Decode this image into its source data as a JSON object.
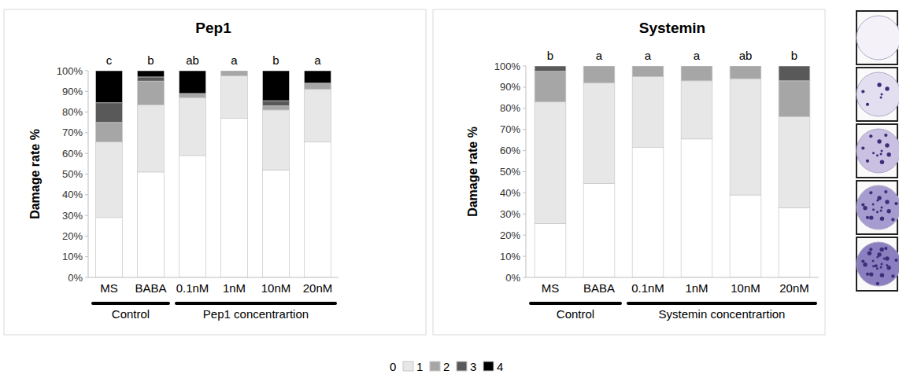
{
  "chart_data": [
    {
      "type": "bar",
      "stacked": true,
      "title": "Pep1",
      "y_label": "Damage rate %",
      "categories": [
        "MS",
        "BABA",
        "0.1nM",
        "1nM",
        "10nM",
        "20nM"
      ],
      "annotations": [
        "c",
        "b",
        "ab",
        "a",
        "b",
        "a"
      ],
      "groups": [
        {
          "label": "Control",
          "start": "MS",
          "end": "BABA"
        },
        {
          "label": "Pep1 concentrartion",
          "start": "0.1nM",
          "end": "20nM"
        }
      ],
      "ylim": [
        0,
        100
      ],
      "yticks": [
        {
          "value": 0,
          "label": "0%"
        },
        {
          "value": 10,
          "label": "10%"
        },
        {
          "value": 20,
          "label": "20%"
        },
        {
          "value": 30,
          "label": "30%"
        },
        {
          "value": 40,
          "label": "40%"
        },
        {
          "value": 50,
          "label": "50%"
        },
        {
          "value": 60,
          "label": "60%"
        },
        {
          "value": 70,
          "label": "70%"
        },
        {
          "value": 80,
          "label": "80%"
        },
        {
          "value": 90,
          "label": "90%"
        },
        {
          "value": 100,
          "label": "100%"
        }
      ],
      "legend": "bottom",
      "series": [
        {
          "name": "0",
          "color": "#ffffff",
          "values": [
            29,
            51,
            59,
            77,
            52,
            65.5
          ]
        },
        {
          "name": "1",
          "color": "#e7e7e7",
          "values": [
            36.5,
            32.5,
            28,
            20.5,
            29,
            25.5
          ]
        },
        {
          "name": "2",
          "color": "#a6a6a6",
          "values": [
            9.5,
            11.5,
            2,
            2.5,
            2,
            3
          ]
        },
        {
          "name": "3",
          "color": "#595959",
          "values": [
            9.5,
            2,
            0,
            0,
            2.5,
            0
          ]
        },
        {
          "name": "4",
          "color": "#000000",
          "values": [
            15.5,
            3,
            11,
            0,
            14.5,
            6
          ]
        }
      ]
    },
    {
      "type": "bar",
      "stacked": true,
      "title": "Systemin",
      "y_label": "Damage rate %",
      "categories": [
        "MS",
        "BABA",
        "0.1nM",
        "1nM",
        "10nM",
        "20nM"
      ],
      "annotations": [
        "b",
        "a",
        "a",
        "a",
        "ab",
        "b"
      ],
      "groups": [
        {
          "label": "Control",
          "start": "MS",
          "end": "BABA"
        },
        {
          "label": "Systemin concentrartion",
          "start": "0.1nM",
          "end": "20nM"
        }
      ],
      "ylim": [
        0,
        100
      ],
      "yticks": [
        {
          "value": 0,
          "label": "0%"
        },
        {
          "value": 10,
          "label": "10%"
        },
        {
          "value": 20,
          "label": "20%"
        },
        {
          "value": 30,
          "label": "30%"
        },
        {
          "value": 40,
          "label": "40%"
        },
        {
          "value": 50,
          "label": "50%"
        },
        {
          "value": 60,
          "label": "60%"
        },
        {
          "value": 70,
          "label": "70%"
        },
        {
          "value": 80,
          "label": "80%"
        },
        {
          "value": 90,
          "label": "90%"
        },
        {
          "value": 100,
          "label": "100%"
        }
      ],
      "series": [
        {
          "name": "0",
          "color": "#ffffff",
          "values": [
            25.5,
            44.5,
            61.5,
            65.5,
            39,
            33
          ]
        },
        {
          "name": "1",
          "color": "#e7e7e7",
          "values": [
            57.5,
            47.5,
            33.5,
            27.5,
            55,
            43
          ]
        },
        {
          "name": "2",
          "color": "#a6a6a6",
          "values": [
            14.5,
            8,
            5,
            7,
            6,
            17
          ]
        },
        {
          "name": "3",
          "color": "#595959",
          "values": [
            2.5,
            0,
            0,
            0,
            0,
            7
          ]
        },
        {
          "name": "4",
          "color": "#000000",
          "values": [
            0,
            0,
            0,
            0,
            0,
            0
          ]
        }
      ]
    }
  ]
}
